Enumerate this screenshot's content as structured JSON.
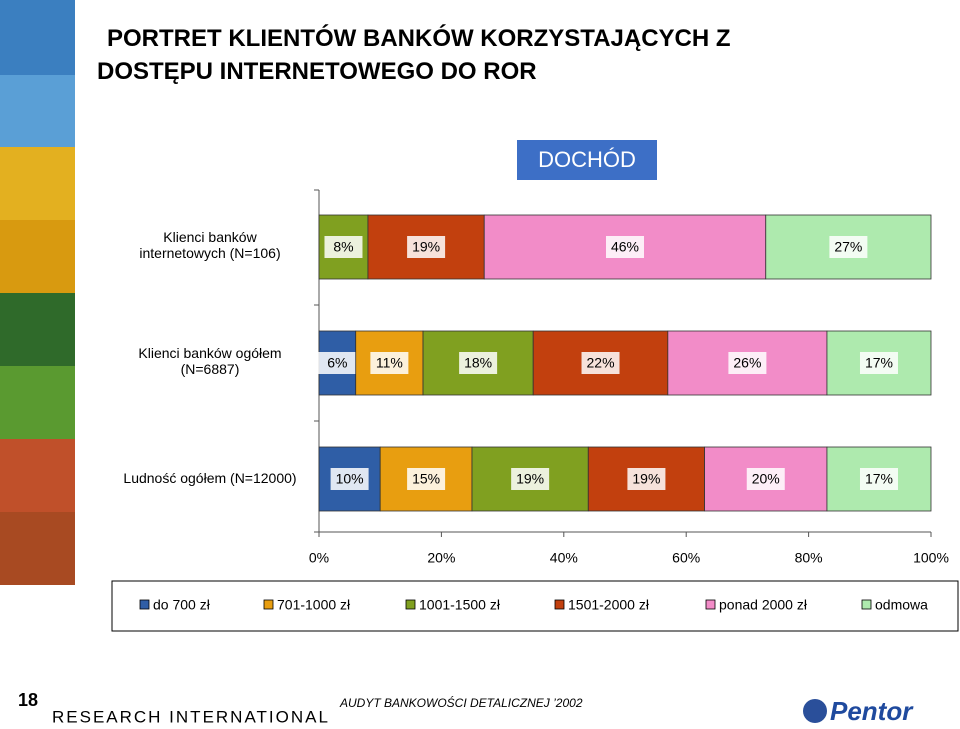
{
  "chart_data": {
    "type": "stacked-bar-horizontal",
    "title": "PORTRET KLIENTÓW BANKÓW KORZYSTAJĄCYCH Z DOSTĘPU INTERNETOWEGO DO ROR",
    "subtitle": "DOCHÓD",
    "categories": [
      "Klienci banków\ninternetowych (N=106)",
      "Klienci banków ogółem\n(N=6887)",
      "Ludność ogółem (N=12000)"
    ],
    "series": [
      {
        "name": "do 700 zł",
        "color": "#2f5ea6",
        "values": [
          null,
          6,
          10
        ],
        "value_labels": [
          null,
          "6%",
          "10%"
        ]
      },
      {
        "name": "701-1000 zł",
        "color": "#e89e10",
        "values": [
          null,
          11,
          15
        ],
        "value_labels": [
          null,
          "11%",
          "15%"
        ]
      },
      {
        "name": "1001-1500 zł",
        "color": "#80a020",
        "values": [
          8,
          18,
          19
        ],
        "value_labels": [
          "8%",
          "18%",
          "19%"
        ]
      },
      {
        "name": "1501-2000 zł",
        "color": "#c2400e",
        "values": [
          19,
          22,
          19
        ],
        "value_labels": [
          "19%",
          "22%",
          "19%"
        ]
      },
      {
        "name": "ponad 2000 zł",
        "color": "#f28cc8",
        "values": [
          46,
          26,
          20
        ],
        "value_labels": [
          "46%",
          "26%",
          "20%"
        ]
      },
      {
        "name": "odmowa",
        "color": "#aeeaae",
        "values": [
          27,
          17,
          17
        ],
        "value_labels": [
          "27%",
          "17%",
          "17%"
        ]
      }
    ],
    "xlim": [
      0,
      100
    ],
    "xticks": [
      {
        "value": 0,
        "label": "0%"
      },
      {
        "value": 20,
        "label": "20%"
      },
      {
        "value": 40,
        "label": "40%"
      },
      {
        "value": 60,
        "label": "60%"
      },
      {
        "value": 80,
        "label": "80%"
      },
      {
        "value": 100,
        "label": "100%"
      }
    ],
    "legend": "bottom"
  },
  "footer": {
    "page": "18",
    "company": "RESEARCH INTERNATIONAL",
    "note": "AUDYT BANKOWOŚCI DETALICZNEJ ’2002",
    "logo": "Pentor"
  }
}
